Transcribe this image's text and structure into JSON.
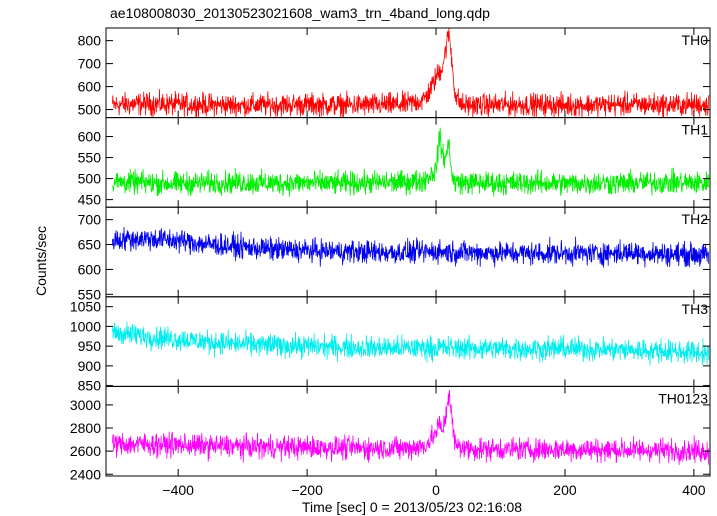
{
  "chart_data": {
    "type": "line",
    "title": "ae108008030_20130523021608_wam3_trn_4band_long.qdp",
    "xlabel": "Time [sec] 0 = 2013/05/23 02:16:08",
    "ylabel": "Counts/sec",
    "xlim": [
      -512,
      425
    ],
    "x_ticks": [
      -400,
      -200,
      0,
      200,
      400
    ],
    "grid": false,
    "legend": "none",
    "panels": [
      {
        "name": "TH0",
        "color": "#ff0000",
        "ylim": [
          465,
          855
        ],
        "y_ticks": [
          500,
          600,
          700,
          800
        ],
        "series": [
          {
            "x": [
              -500,
              -450,
              -400,
              -350,
              -300,
              -250,
              -200,
              -150,
              -100,
              -50,
              -20,
              -10,
              0,
              10,
              15,
              20,
              25,
              30,
              40,
              60,
              100,
              150,
              200,
              250,
              300,
              350,
              400,
              420
            ],
            "values": [
              520,
              525,
              522,
              520,
              518,
              520,
              522,
              519,
              520,
              522,
              540,
              580,
              640,
              690,
              760,
              840,
              700,
              560,
              520,
              518,
              520,
              521,
              519,
              520,
              522,
              520,
              521,
              520
            ]
          }
        ]
      },
      {
        "name": "TH1",
        "color": "#00ee00",
        "ylim": [
          432,
          645
        ],
        "y_ticks": [
          450,
          500,
          550,
          600
        ],
        "series": [
          {
            "x": [
              -500,
              -450,
              -400,
              -350,
              -300,
              -250,
              -200,
              -150,
              -100,
              -50,
              -20,
              0,
              5,
              10,
              15,
              20,
              25,
              30,
              50,
              100,
              150,
              200,
              250,
              300,
              350,
              400,
              420
            ],
            "values": [
              492,
              490,
              488,
              490,
              491,
              489,
              490,
              488,
              490,
              491,
              495,
              520,
              600,
              560,
              545,
              590,
              500,
              492,
              490,
              489,
              490,
              488,
              490,
              489,
              491,
              490,
              489
            ]
          }
        ]
      },
      {
        "name": "TH2",
        "color": "#0000ee",
        "ylim": [
          545,
          725
        ],
        "y_ticks": [
          550,
          600,
          650,
          700
        ],
        "series": [
          {
            "x": [
              -500,
              -450,
              -400,
              -350,
              -300,
              -250,
              -200,
              -150,
              -100,
              -50,
              0,
              50,
              100,
              150,
              200,
              250,
              300,
              350,
              400,
              420
            ],
            "values": [
              660,
              662,
              658,
              650,
              645,
              640,
              638,
              636,
              635,
              634,
              636,
              634,
              633,
              632,
              633,
              632,
              634,
              631,
              630,
              628
            ]
          }
        ]
      },
      {
        "name": "TH3",
        "color": "#00eeee",
        "ylim": [
          848,
          1075
        ],
        "y_ticks": [
          850,
          900,
          950,
          1000,
          1050
        ],
        "series": [
          {
            "x": [
              -500,
              -450,
              -400,
              -350,
              -300,
              -250,
              -200,
              -150,
              -100,
              -50,
              0,
              50,
              100,
              150,
              200,
              250,
              300,
              350,
              400,
              420
            ],
            "values": [
              985,
              975,
              968,
              960,
              955,
              952,
              950,
              948,
              946,
              945,
              946,
              945,
              944,
              943,
              944,
              942,
              940,
              938,
              935,
              932
            ]
          }
        ]
      },
      {
        "name": "TH0123",
        "color": "#ff00ff",
        "ylim": [
          2385,
          3160
        ],
        "y_ticks": [
          2400,
          2600,
          2800,
          3000
        ],
        "series": [
          {
            "x": [
              -500,
              -450,
              -400,
              -350,
              -300,
              -250,
              -200,
              -150,
              -100,
              -50,
              -20,
              -10,
              0,
              5,
              10,
              15,
              20,
              25,
              30,
              50,
              100,
              150,
              200,
              250,
              300,
              350,
              400,
              420
            ],
            "values": [
              2660,
              2660,
              2655,
              2645,
              2640,
              2635,
              2632,
              2628,
              2625,
              2624,
              2640,
              2690,
              2760,
              2830,
              2780,
              2900,
              3130,
              2850,
              2650,
              2620,
              2618,
              2615,
              2614,
              2612,
              2610,
              2608,
              2605,
              2600
            ]
          }
        ]
      }
    ]
  }
}
